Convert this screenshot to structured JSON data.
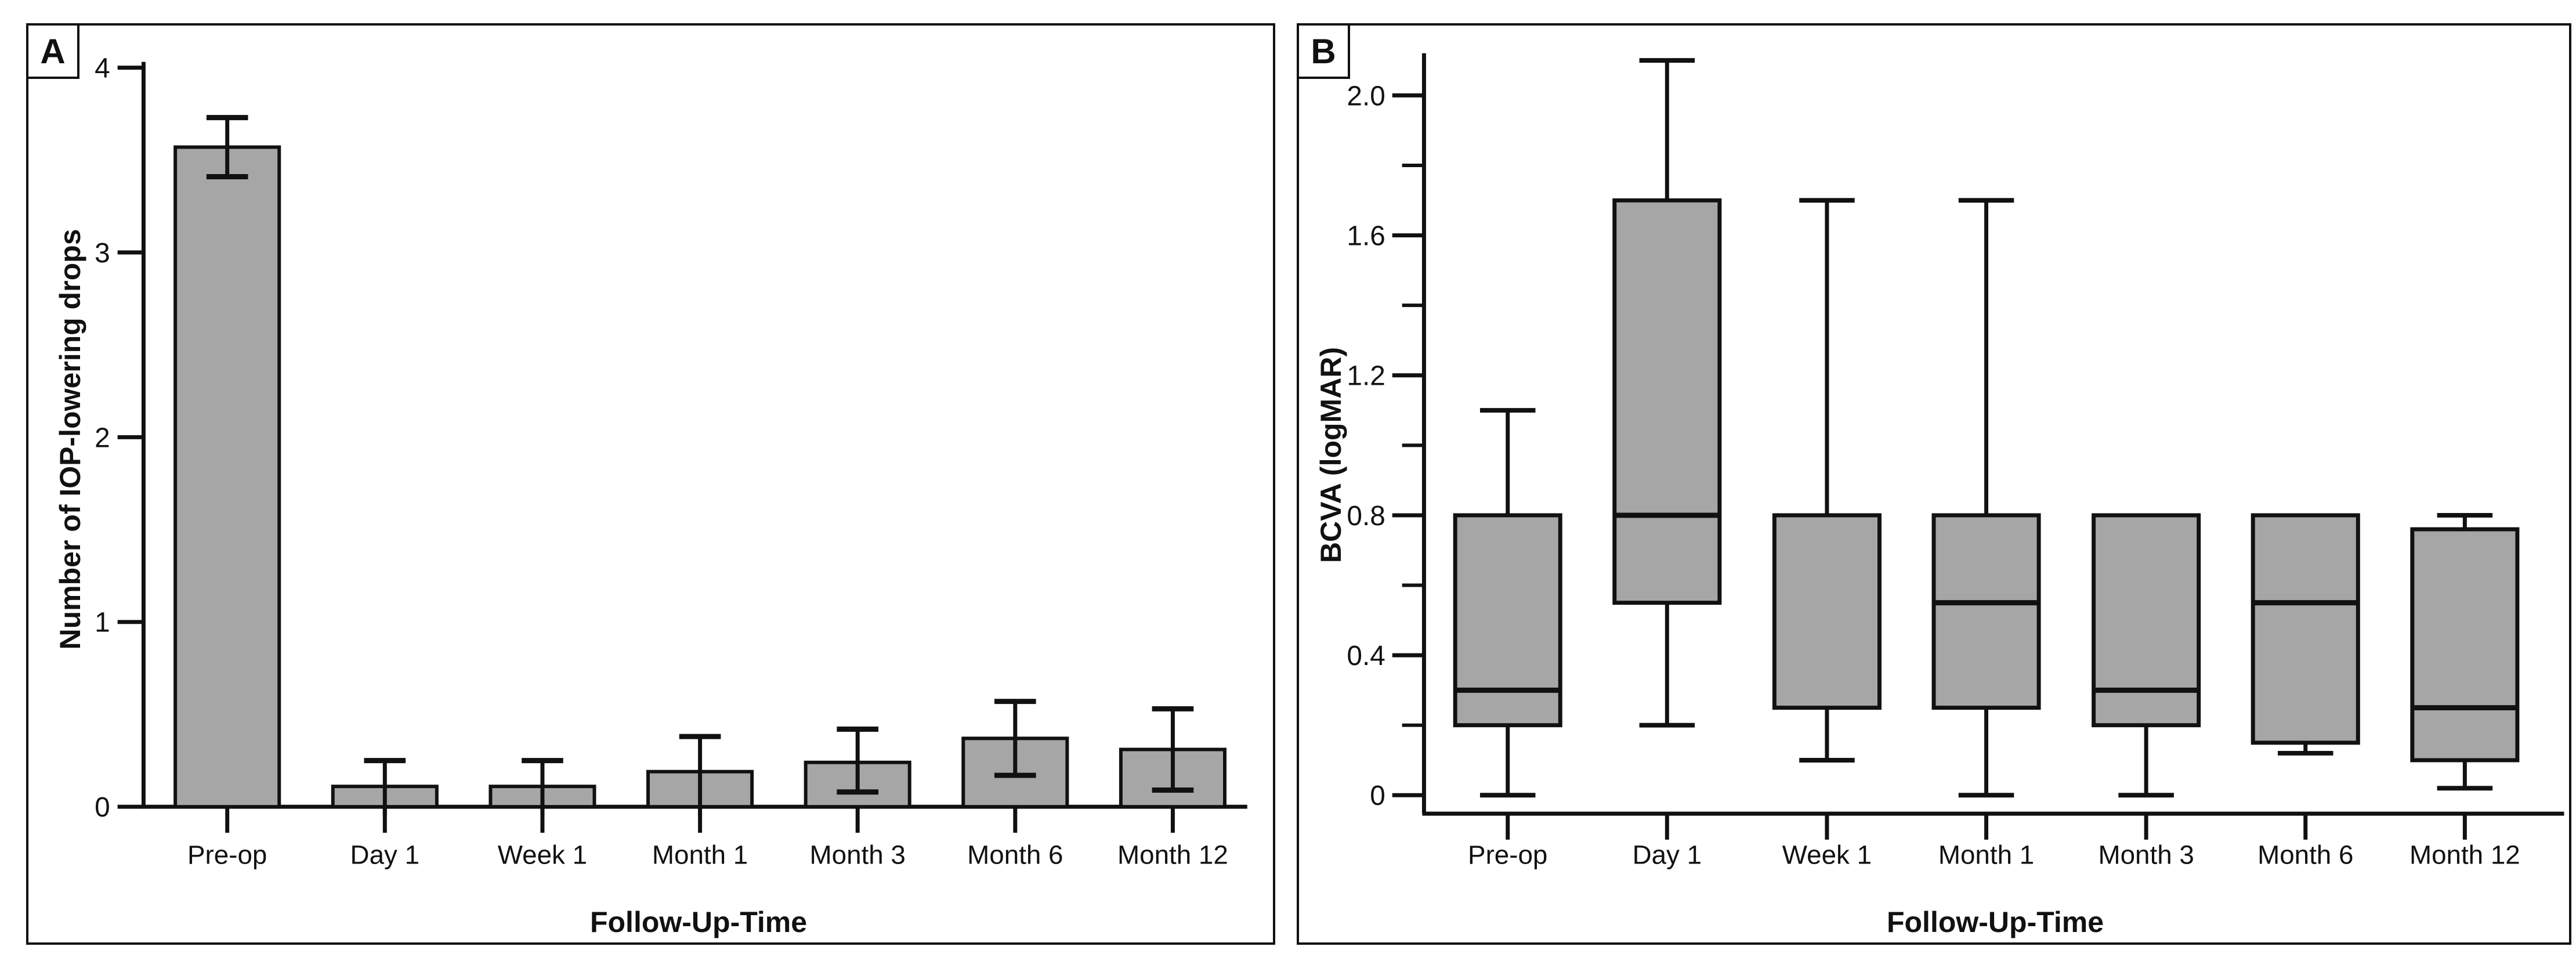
{
  "figure": {
    "panel_a": {
      "badge": "A",
      "y_axis_title": "Number of IOP-lowering drops",
      "x_axis_title": "Follow-Up-Time"
    },
    "panel_b": {
      "badge": "B",
      "y_axis_title": "BCVA (logMAR)",
      "x_axis_title": "Follow-Up-Time"
    },
    "colors": {
      "fill": "#a6a6a6",
      "stroke": "#111111"
    }
  },
  "chart_data": [
    {
      "type": "bar",
      "panel": "A",
      "title": "",
      "xlabel": "Follow-Up-Time",
      "ylabel": "Number of IOP-lowering drops",
      "categories": [
        "Pre-op",
        "Day 1",
        "Week 1",
        "Month 1",
        "Month 3",
        "Month 6",
        "Month 12"
      ],
      "values": [
        3.57,
        0.11,
        0.11,
        0.19,
        0.24,
        0.37,
        0.31
      ],
      "error_upper": [
        3.73,
        0.25,
        0.25,
        0.38,
        0.42,
        0.57,
        0.53
      ],
      "error_lower": [
        3.41,
        -0.05,
        -0.05,
        -0.05,
        0.08,
        0.17,
        0.09
      ],
      "lower_cap_visible": [
        true,
        false,
        false,
        false,
        true,
        true,
        true
      ],
      "ylim": [
        0,
        4
      ],
      "yticks": [
        0,
        1,
        2,
        3,
        4
      ],
      "ytick_labels": [
        "0",
        "1",
        "2",
        "3",
        "4"
      ],
      "grid": false,
      "legend": "none",
      "bar_color": "#a6a6a6"
    },
    {
      "type": "box",
      "panel": "B",
      "title": "",
      "xlabel": "Follow-Up-Time",
      "ylabel": "BCVA (logMAR)",
      "categories": [
        "Pre-op",
        "Day 1",
        "Week 1",
        "Month 1",
        "Month 3",
        "Month 6",
        "Month 12"
      ],
      "series": [
        {
          "name": "Pre-op",
          "low": 0,
          "q1": 0.2,
          "median": 0.3,
          "q3": 0.8,
          "high": 1.1,
          "median_visible": true
        },
        {
          "name": "Day 1",
          "low": 0.2,
          "q1": 0.55,
          "median": 0.8,
          "q3": 1.7,
          "high": 2.1,
          "median_visible": true
        },
        {
          "name": "Week 1",
          "low": 0.1,
          "q1": 0.25,
          "median": 0.8,
          "q3": 0.8,
          "high": 1.7,
          "median_visible": false
        },
        {
          "name": "Month 1",
          "low": 0,
          "q1": 0.25,
          "median": 0.55,
          "q3": 0.8,
          "high": 1.7,
          "median_visible": true
        },
        {
          "name": "Month 3",
          "low": 0,
          "q1": 0.2,
          "median": 0.3,
          "q3": 0.8,
          "high": 0.8,
          "median_visible": true
        },
        {
          "name": "Month 6",
          "low": 0.12,
          "q1": 0.15,
          "median": 0.55,
          "q3": 0.8,
          "high": 0.8,
          "median_visible": true
        },
        {
          "name": "Month 12",
          "low": 0.02,
          "q1": 0.1,
          "median": 0.25,
          "q3": 0.76,
          "high": 0.8,
          "median_visible": true
        }
      ],
      "ylim": [
        0,
        2.2
      ],
      "ytick_majors": [
        0,
        0.4,
        0.8,
        1.2,
        1.6,
        2.0
      ],
      "ytick_major_labels": [
        "0",
        "0.4",
        "0.8",
        "1.2",
        "1.6",
        "2.0"
      ],
      "ytick_minors": [
        0.2,
        0.6,
        1.0,
        1.4,
        1.8
      ],
      "grid": false,
      "legend": "none",
      "box_color": "#a6a6a6"
    }
  ]
}
